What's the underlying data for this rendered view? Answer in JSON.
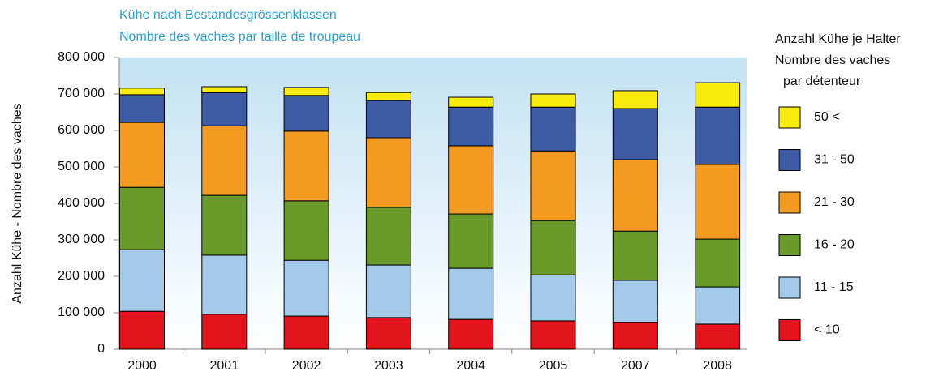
{
  "chart_data": {
    "type": "stacked_bar",
    "title": "Kühe nach Bestandesgrössenklassen",
    "subtitle": "Nombre des vaches par taille de troupeau",
    "y_label": "Anzahl Kühe -  Nombre des vaches",
    "legend_title": [
      "Anzahl Kühe je Halter",
      "Nombre des vaches",
      "par détenteur"
    ],
    "categories": [
      "2000",
      "2001",
      "2002",
      "2003",
      "2004",
      "2005",
      "2007",
      "2008"
    ],
    "series": [
      {
        "name": "< 10",
        "color": "#e3141b",
        "values": [
          104000,
          96000,
          91000,
          87000,
          82000,
          78000,
          73000,
          69000
        ]
      },
      {
        "name": "11 - 15",
        "color": "#a5c9e9",
        "values": [
          169000,
          162000,
          153000,
          144000,
          140000,
          126000,
          116000,
          102000
        ]
      },
      {
        "name": "16 - 20",
        "color": "#6a9a2a",
        "values": [
          171000,
          164000,
          163000,
          158000,
          149000,
          149000,
          135000,
          131000
        ]
      },
      {
        "name": "21 - 30",
        "color": "#f39a21",
        "values": [
          178000,
          191000,
          191000,
          191000,
          187000,
          191000,
          196000,
          205000
        ]
      },
      {
        "name": "31 - 50",
        "color": "#3d5aa5",
        "values": [
          76000,
          91000,
          98000,
          102000,
          106000,
          120000,
          140000,
          157000
        ]
      },
      {
        "name": "50 <",
        "color": "#f8ec0f",
        "values": [
          18000,
          16000,
          22000,
          22000,
          27000,
          36000,
          49000,
          67000
        ]
      }
    ],
    "ylim": [
      0,
      800000
    ],
    "yticks": [
      0,
      {
        "value": 100000,
        "label": "100 000"
      },
      {
        "value": 200000,
        "label": "200 000"
      },
      {
        "value": 300000,
        "label": "300 000"
      },
      {
        "value": 400000,
        "label": "400 000"
      },
      {
        "value": 500000,
        "label": "500 000"
      },
      {
        "value": 600000,
        "label": "600 000"
      },
      {
        "value": 700000,
        "label": "700 000"
      },
      {
        "value": 800000,
        "label": "800 000"
      }
    ],
    "legend": "right"
  }
}
